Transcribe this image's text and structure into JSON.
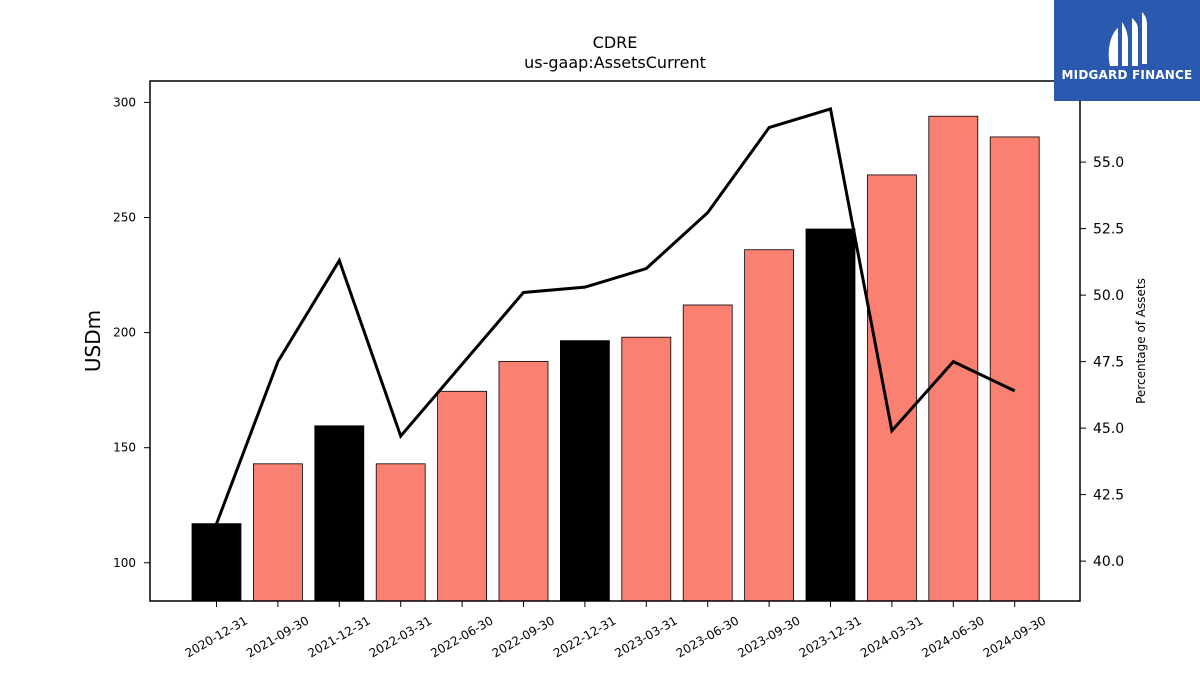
{
  "chart_data": {
    "type": "bar",
    "title": "CDRE",
    "subtitle": "us-gaap:AssetsCurrent",
    "ylabel": "USDm",
    "ylabel_right": "Percentage of Assets",
    "categories": [
      "2020-12-31",
      "2021-09-30",
      "2021-12-31",
      "2022-03-31",
      "2022-06-30",
      "2022-09-30",
      "2022-12-31",
      "2023-03-31",
      "2023-06-30",
      "2023-09-30",
      "2023-12-31",
      "2024-03-31",
      "2024-06-30",
      "2024-09-30"
    ],
    "values": [
      117,
      143,
      159.5,
      143,
      174.5,
      187.5,
      196.5,
      198,
      212,
      236,
      245,
      268.5,
      294,
      285
    ],
    "bar_colors": [
      "#000000",
      "#fa8072",
      "#000000",
      "#fa8072",
      "#fa8072",
      "#fa8072",
      "#000000",
      "#fa8072",
      "#fa8072",
      "#fa8072",
      "#000000",
      "#fa8072",
      "#fa8072",
      "#fa8072"
    ],
    "line_series": {
      "values": [
        41.4,
        47.5,
        51.3,
        44.7,
        47.4,
        50.1,
        50.3,
        51.0,
        53.1,
        56.3,
        57.0,
        44.9,
        47.5,
        46.4
      ],
      "color": "#000000"
    },
    "ylim": [
      83.4,
      309.3
    ],
    "yticks": [
      "100",
      "150",
      "200",
      "250",
      "300"
    ],
    "ylim_right": [
      38.5,
      58.05
    ],
    "yticks_right": [
      "40.0",
      "42.5",
      "45.0",
      "47.5",
      "50.0",
      "52.5",
      "55.0"
    ],
    "grid": false
  },
  "logo": {
    "text": "MIDGARD FINANCE",
    "background": "#2b59b0"
  }
}
